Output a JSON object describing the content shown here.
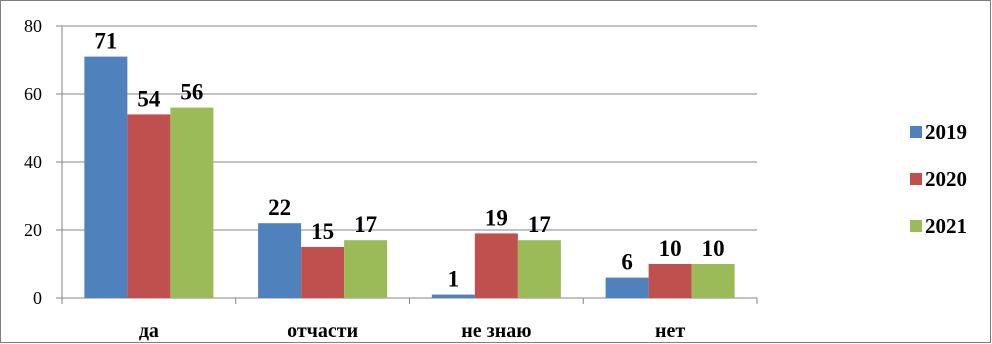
{
  "chart_data": {
    "type": "bar",
    "categories": [
      "да",
      "отчасти",
      "не знаю",
      "нет"
    ],
    "series": [
      {
        "name": "2019",
        "values": [
          71,
          22,
          1,
          6
        ],
        "color": "#4F81BD"
      },
      {
        "name": "2020",
        "values": [
          54,
          15,
          19,
          10
        ],
        "color": "#C0504D"
      },
      {
        "name": "2021",
        "values": [
          56,
          17,
          17,
          10
        ],
        "color": "#9BBB59"
      }
    ],
    "yticks": [
      0,
      20,
      40,
      60,
      80
    ],
    "ylim": [
      0,
      80
    ],
    "grid": true,
    "legend": "right",
    "data_labels": true
  }
}
